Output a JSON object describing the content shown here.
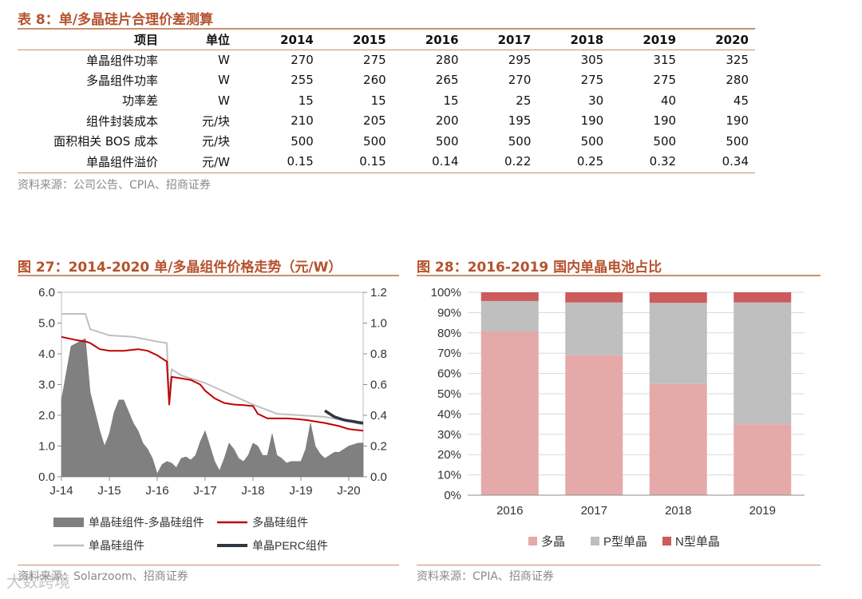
{
  "table8": {
    "title": "表 8：单/多晶硅片合理价差测算",
    "headers": [
      "项目",
      "单位",
      "2014",
      "2015",
      "2016",
      "2017",
      "2018",
      "2019",
      "2020"
    ],
    "rows": [
      [
        "单晶组件功率",
        "W",
        "270",
        "275",
        "280",
        "295",
        "305",
        "315",
        "325"
      ],
      [
        "多晶组件功率",
        "W",
        "255",
        "260",
        "265",
        "270",
        "275",
        "275",
        "280"
      ],
      [
        "功率差",
        "W",
        "15",
        "15",
        "15",
        "25",
        "30",
        "40",
        "45"
      ],
      [
        "组件封装成本",
        "元/块",
        "210",
        "205",
        "200",
        "195",
        "190",
        "190",
        "190"
      ],
      [
        "面积相关 BOS 成本",
        "元/块",
        "500",
        "500",
        "500",
        "500",
        "500",
        "500",
        "500"
      ],
      [
        "单晶组件溢价",
        "元/W",
        "0.15",
        "0.15",
        "0.14",
        "0.22",
        "0.25",
        "0.32",
        "0.34"
      ]
    ],
    "source": "资料来源：公司公告、CPIA、招商证券"
  },
  "fig27": {
    "title": "图 27：2014-2020 单/多晶组件价格走势（元/W）",
    "source": "资料来源：Solarzoom、招商证券"
  },
  "fig28": {
    "title": "图 28：2016-2019 国内单晶电池占比",
    "source": "资料来源：CPIA、招商证券"
  },
  "watermark": "大数跨境",
  "chart_data": [
    {
      "type": "area+line",
      "title": "2014-2020 单/多晶组件价格走势（元/W）",
      "xlabels": [
        "J-14",
        "J-15",
        "J-16",
        "J-17",
        "J-18",
        "J-19",
        "J-20"
      ],
      "left_axis": {
        "ylim": [
          0,
          6.0
        ],
        "ticks": [
          "0.0",
          "1.0",
          "2.0",
          "3.0",
          "4.0",
          "5.0",
          "6.0"
        ]
      },
      "right_axis": {
        "ylim": [
          0,
          1.2
        ],
        "ticks": [
          "0.0",
          "0.2",
          "0.4",
          "0.6",
          "0.8",
          "1.0",
          "1.2"
        ]
      },
      "legend": [
        "单晶硅组件-多晶硅组件",
        "多晶硅组件",
        "单晶硅组件",
        "单晶PERC组件"
      ],
      "series": [
        {
          "name": "单晶硅组件-多晶硅组件",
          "axis": "right",
          "x": [
            0.0,
            0.2,
            0.5,
            0.6,
            0.8,
            0.9,
            1.0,
            1.1,
            1.2,
            1.3,
            1.5,
            1.6,
            1.7,
            1.8,
            1.9,
            2.0,
            2.1,
            2.2,
            2.3,
            2.4,
            2.5,
            2.6,
            2.7,
            2.8,
            2.9,
            3.0,
            3.1,
            3.2,
            3.3,
            3.4,
            3.5,
            3.6,
            3.7,
            3.8,
            3.9,
            4.0,
            4.1,
            4.2,
            4.3,
            4.4,
            4.5,
            4.6,
            4.7,
            4.8,
            4.9,
            5.0,
            5.1,
            5.2,
            5.3,
            5.4,
            5.5,
            5.6,
            5.7,
            5.8,
            5.9,
            6.0,
            6.2,
            6.3
          ],
          "values": [
            0.5,
            0.85,
            0.9,
            0.55,
            0.3,
            0.2,
            0.28,
            0.42,
            0.5,
            0.5,
            0.35,
            0.3,
            0.22,
            0.18,
            0.12,
            0.02,
            0.08,
            0.1,
            0.09,
            0.06,
            0.12,
            0.13,
            0.11,
            0.14,
            0.23,
            0.3,
            0.2,
            0.1,
            0.04,
            0.12,
            0.22,
            0.18,
            0.12,
            0.1,
            0.14,
            0.22,
            0.2,
            0.14,
            0.14,
            0.28,
            0.14,
            0.12,
            0.09,
            0.1,
            0.1,
            0.1,
            0.18,
            0.35,
            0.2,
            0.15,
            0.12,
            0.14,
            0.16,
            0.16,
            0.18,
            0.2,
            0.22,
            0.22
          ]
        },
        {
          "name": "多晶硅组件",
          "axis": "left",
          "x": [
            0.0,
            0.3,
            0.5,
            0.6,
            0.8,
            1.0,
            1.3,
            1.6,
            1.8,
            2.0,
            2.1,
            2.2,
            2.25,
            2.3,
            2.5,
            2.7,
            2.9,
            3.0,
            3.2,
            3.4,
            3.6,
            3.8,
            4.0,
            4.1,
            4.3,
            4.5,
            4.7,
            4.9,
            5.1,
            5.3,
            5.5,
            5.8,
            6.0,
            6.3
          ],
          "values": [
            4.55,
            4.45,
            4.4,
            4.35,
            4.15,
            4.1,
            4.1,
            4.15,
            4.1,
            3.95,
            3.85,
            3.75,
            2.35,
            3.25,
            3.2,
            3.15,
            3.0,
            2.8,
            2.55,
            2.4,
            2.35,
            2.33,
            2.3,
            2.05,
            1.9,
            1.9,
            1.9,
            1.88,
            1.85,
            1.8,
            1.75,
            1.65,
            1.55,
            1.5
          ]
        },
        {
          "name": "单晶硅组件",
          "axis": "left",
          "x": [
            0.0,
            0.5,
            0.6,
            0.7,
            1.0,
            1.5,
            2.0,
            2.2,
            2.25,
            2.3,
            2.5,
            3.0,
            3.5,
            4.0,
            4.5,
            5.0,
            5.5,
            6.0,
            6.3
          ],
          "values": [
            5.3,
            5.3,
            4.8,
            4.75,
            4.6,
            4.55,
            4.4,
            4.35,
            2.55,
            3.5,
            3.3,
            3.05,
            2.7,
            2.35,
            2.05,
            2.0,
            1.95,
            1.8,
            1.7
          ]
        },
        {
          "name": "单晶PERC组件",
          "axis": "left",
          "x": [
            5.5,
            5.6,
            5.7,
            5.8,
            5.9,
            6.0,
            6.1,
            6.2,
            6.3
          ],
          "values": [
            2.15,
            2.05,
            1.95,
            1.9,
            1.85,
            1.82,
            1.8,
            1.77,
            1.75
          ]
        }
      ]
    },
    {
      "type": "bar",
      "stacked": true,
      "title": "2016-2019 国内单晶电池占比",
      "categories": [
        "2016",
        "2017",
        "2018",
        "2019"
      ],
      "ylim": [
        0,
        100
      ],
      "yticks": [
        "0%",
        "10%",
        "20%",
        "30%",
        "40%",
        "50%",
        "60%",
        "70%",
        "80%",
        "90%",
        "100%"
      ],
      "series": [
        {
          "name": "多晶",
          "values": [
            80.7,
            69.0,
            54.8,
            35.0
          ],
          "color": "#e6a9a9"
        },
        {
          "name": "P型单晶",
          "values": [
            15.0,
            26.0,
            40.0,
            60.0
          ],
          "color": "#bfbfbf"
        },
        {
          "name": "N型单晶",
          "values": [
            4.3,
            5.0,
            5.2,
            5.0
          ],
          "color": "#cc5b5b"
        }
      ]
    }
  ]
}
